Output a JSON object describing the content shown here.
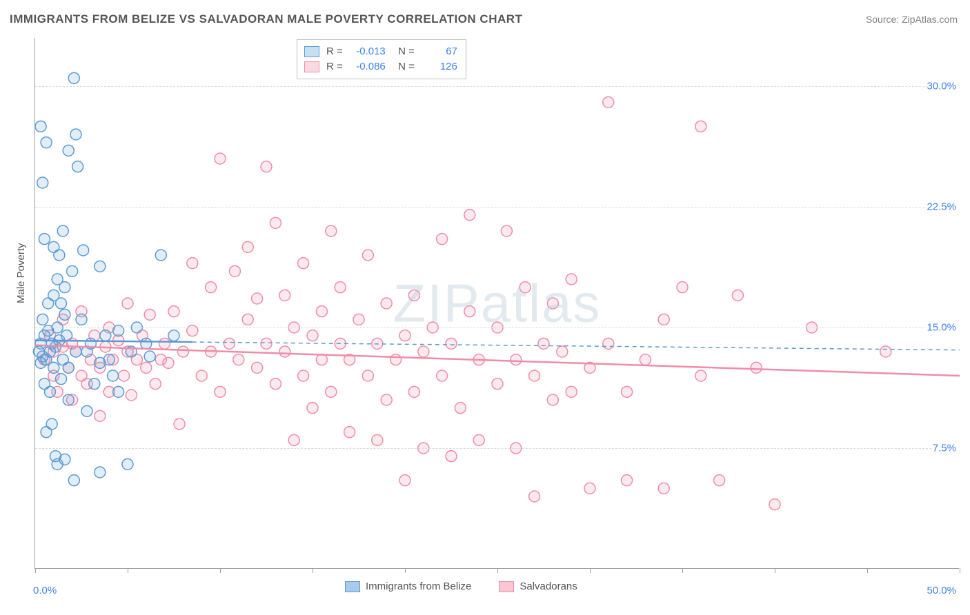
{
  "title": "IMMIGRANTS FROM BELIZE VS SALVADORAN MALE POVERTY CORRELATION CHART",
  "source": "Source: ZipAtlas.com",
  "watermark": "ZIPatlas",
  "ylabel": "Male Poverty",
  "chart": {
    "type": "scatter",
    "xlim": [
      0,
      50
    ],
    "ylim": [
      0,
      33
    ],
    "xlabel_min": "0.0%",
    "xlabel_max": "50.0%",
    "xtick_positions": [
      0,
      5,
      10,
      15,
      20,
      25,
      30,
      35,
      40,
      45,
      50
    ],
    "yticks": [
      {
        "v": 7.5,
        "label": "7.5%"
      },
      {
        "v": 15.0,
        "label": "15.0%"
      },
      {
        "v": 22.5,
        "label": "22.5%"
      },
      {
        "v": 30.0,
        "label": "30.0%"
      }
    ],
    "background_color": "#ffffff",
    "grid_color": "#dcdcdc",
    "axis_color": "#9e9e9e",
    "marker_radius": 8,
    "marker_stroke_width": 1.5,
    "marker_fill_opacity": 0.18,
    "line_width": 2.5,
    "dash_pattern": "6,5"
  },
  "series": [
    {
      "name": "Immigrants from Belize",
      "color_stroke": "#5b9bd5",
      "color_fill": "#5b9bd5",
      "legend_R": "-0.013",
      "legend_N": "67",
      "trend": {
        "y0": 14.2,
        "y1": 13.6,
        "solid_until_x": 8.5
      },
      "points": [
        [
          0.2,
          13.5
        ],
        [
          0.3,
          14.0
        ],
        [
          0.3,
          12.8
        ],
        [
          0.4,
          13.2
        ],
        [
          0.4,
          15.5
        ],
        [
          0.5,
          11.5
        ],
        [
          0.5,
          14.5
        ],
        [
          0.5,
          20.5
        ],
        [
          0.6,
          13.0
        ],
        [
          0.6,
          8.5
        ],
        [
          0.7,
          14.8
        ],
        [
          0.7,
          16.5
        ],
        [
          0.8,
          13.5
        ],
        [
          0.8,
          11.0
        ],
        [
          0.9,
          9.0
        ],
        [
          0.9,
          14.0
        ],
        [
          1.0,
          17.0
        ],
        [
          1.0,
          12.5
        ],
        [
          1.1,
          13.8
        ],
        [
          1.1,
          7.0
        ],
        [
          1.2,
          15.0
        ],
        [
          1.2,
          6.5
        ],
        [
          1.3,
          19.5
        ],
        [
          1.3,
          14.2
        ],
        [
          1.4,
          11.8
        ],
        [
          1.5,
          13.0
        ],
        [
          1.5,
          21.0
        ],
        [
          1.6,
          17.5
        ],
        [
          1.6,
          6.8
        ],
        [
          1.7,
          14.5
        ],
        [
          1.8,
          10.5
        ],
        [
          1.8,
          26.0
        ],
        [
          2.0,
          18.5
        ],
        [
          2.1,
          5.5
        ],
        [
          2.1,
          30.5
        ],
        [
          2.2,
          27.0
        ],
        [
          2.3,
          25.0
        ],
        [
          2.5,
          15.5
        ],
        [
          2.6,
          19.8
        ],
        [
          2.8,
          13.5
        ],
        [
          3.0,
          14.0
        ],
        [
          3.2,
          11.5
        ],
        [
          3.5,
          6.0
        ],
        [
          3.5,
          18.8
        ],
        [
          3.8,
          14.5
        ],
        [
          4.0,
          13.0
        ],
        [
          4.2,
          12.0
        ],
        [
          4.5,
          14.8
        ],
        [
          5.0,
          6.5
        ],
        [
          5.2,
          13.5
        ],
        [
          5.5,
          15.0
        ],
        [
          6.0,
          14.0
        ],
        [
          6.2,
          13.2
        ],
        [
          6.8,
          19.5
        ],
        [
          7.5,
          14.5
        ],
        [
          0.3,
          27.5
        ],
        [
          0.4,
          24.0
        ],
        [
          0.6,
          26.5
        ],
        [
          1.0,
          20.0
        ],
        [
          1.2,
          18.0
        ],
        [
          1.4,
          16.5
        ],
        [
          1.6,
          15.8
        ],
        [
          1.8,
          12.5
        ],
        [
          2.2,
          13.5
        ],
        [
          2.8,
          9.8
        ],
        [
          3.5,
          12.8
        ],
        [
          4.5,
          11.0
        ]
      ]
    },
    {
      "name": "Salvadorans",
      "color_stroke": "#f08ca8",
      "color_fill": "#f08ca8",
      "legend_R": "-0.086",
      "legend_N": "126",
      "trend": {
        "y0": 13.9,
        "y1": 12.0,
        "solid_until_x": 50
      },
      "points": [
        [
          0.5,
          13.0
        ],
        [
          0.8,
          14.5
        ],
        [
          1.0,
          12.0
        ],
        [
          1.0,
          13.5
        ],
        [
          1.2,
          11.0
        ],
        [
          1.5,
          13.8
        ],
        [
          1.5,
          15.5
        ],
        [
          1.8,
          12.5
        ],
        [
          2.0,
          14.0
        ],
        [
          2.0,
          10.5
        ],
        [
          2.2,
          13.5
        ],
        [
          2.5,
          12.0
        ],
        [
          2.5,
          16.0
        ],
        [
          2.8,
          11.5
        ],
        [
          3.0,
          13.0
        ],
        [
          3.2,
          14.5
        ],
        [
          3.5,
          12.5
        ],
        [
          3.5,
          9.5
        ],
        [
          3.8,
          13.8
        ],
        [
          4.0,
          15.0
        ],
        [
          4.0,
          11.0
        ],
        [
          4.2,
          13.0
        ],
        [
          4.5,
          14.2
        ],
        [
          4.8,
          12.0
        ],
        [
          5.0,
          13.5
        ],
        [
          5.0,
          16.5
        ],
        [
          5.2,
          10.8
        ],
        [
          5.5,
          13.0
        ],
        [
          5.8,
          14.5
        ],
        [
          6.0,
          12.5
        ],
        [
          6.2,
          15.8
        ],
        [
          6.5,
          11.5
        ],
        [
          6.8,
          13.0
        ],
        [
          7.0,
          14.0
        ],
        [
          7.2,
          12.8
        ],
        [
          7.5,
          16.0
        ],
        [
          7.8,
          9.0
        ],
        [
          8.0,
          13.5
        ],
        [
          8.5,
          14.8
        ],
        [
          8.5,
          19.0
        ],
        [
          9.0,
          12.0
        ],
        [
          9.5,
          13.5
        ],
        [
          9.5,
          17.5
        ],
        [
          10.0,
          25.5
        ],
        [
          10.0,
          11.0
        ],
        [
          10.5,
          14.0
        ],
        [
          10.8,
          18.5
        ],
        [
          11.0,
          13.0
        ],
        [
          11.5,
          20.0
        ],
        [
          11.5,
          15.5
        ],
        [
          12.0,
          12.5
        ],
        [
          12.0,
          16.8
        ],
        [
          12.5,
          14.0
        ],
        [
          12.5,
          25.0
        ],
        [
          13.0,
          11.5
        ],
        [
          13.0,
          21.5
        ],
        [
          13.5,
          13.5
        ],
        [
          13.5,
          17.0
        ],
        [
          14.0,
          15.0
        ],
        [
          14.0,
          8.0
        ],
        [
          14.5,
          12.0
        ],
        [
          14.5,
          19.0
        ],
        [
          15.0,
          14.5
        ],
        [
          15.0,
          10.0
        ],
        [
          15.5,
          16.0
        ],
        [
          15.5,
          13.0
        ],
        [
          16.0,
          11.0
        ],
        [
          16.0,
          21.0
        ],
        [
          16.5,
          14.0
        ],
        [
          16.5,
          17.5
        ],
        [
          17.0,
          8.5
        ],
        [
          17.0,
          13.0
        ],
        [
          17.5,
          15.5
        ],
        [
          18.0,
          12.0
        ],
        [
          18.0,
          19.5
        ],
        [
          18.5,
          8.0
        ],
        [
          18.5,
          14.0
        ],
        [
          19.0,
          10.5
        ],
        [
          19.0,
          16.5
        ],
        [
          19.5,
          13.0
        ],
        [
          20.0,
          5.5
        ],
        [
          20.0,
          14.5
        ],
        [
          20.5,
          11.0
        ],
        [
          20.5,
          17.0
        ],
        [
          21.0,
          7.5
        ],
        [
          21.0,
          13.5
        ],
        [
          21.5,
          15.0
        ],
        [
          22.0,
          12.0
        ],
        [
          22.0,
          20.5
        ],
        [
          22.5,
          7.0
        ],
        [
          22.5,
          14.0
        ],
        [
          23.0,
          10.0
        ],
        [
          23.5,
          16.0
        ],
        [
          23.5,
          22.0
        ],
        [
          24.0,
          13.0
        ],
        [
          24.0,
          8.0
        ],
        [
          25.0,
          11.5
        ],
        [
          25.0,
          15.0
        ],
        [
          25.5,
          21.0
        ],
        [
          26.0,
          13.0
        ],
        [
          26.0,
          7.5
        ],
        [
          26.5,
          17.5
        ],
        [
          27.0,
          12.0
        ],
        [
          27.0,
          4.5
        ],
        [
          27.5,
          14.0
        ],
        [
          28.0,
          16.5
        ],
        [
          28.0,
          10.5
        ],
        [
          28.5,
          13.5
        ],
        [
          29.0,
          11.0
        ],
        [
          29.0,
          18.0
        ],
        [
          30.0,
          12.5
        ],
        [
          30.0,
          5.0
        ],
        [
          31.0,
          29.0
        ],
        [
          31.0,
          14.0
        ],
        [
          32.0,
          11.0
        ],
        [
          32.0,
          5.5
        ],
        [
          33.0,
          13.0
        ],
        [
          34.0,
          15.5
        ],
        [
          34.0,
          5.0
        ],
        [
          35.0,
          17.5
        ],
        [
          36.0,
          12.0
        ],
        [
          36.0,
          27.5
        ],
        [
          37.0,
          5.5
        ],
        [
          38.0,
          17.0
        ],
        [
          39.0,
          12.5
        ],
        [
          40.0,
          4.0
        ],
        [
          42.0,
          15.0
        ],
        [
          46.0,
          13.5
        ]
      ]
    }
  ],
  "legend_bottom": [
    {
      "label": "Immigrants from Belize",
      "stroke": "#5b9bd5",
      "fill": "#a8cbec"
    },
    {
      "label": "Salvadorans",
      "stroke": "#f08ca8",
      "fill": "#f9c7d4"
    }
  ]
}
